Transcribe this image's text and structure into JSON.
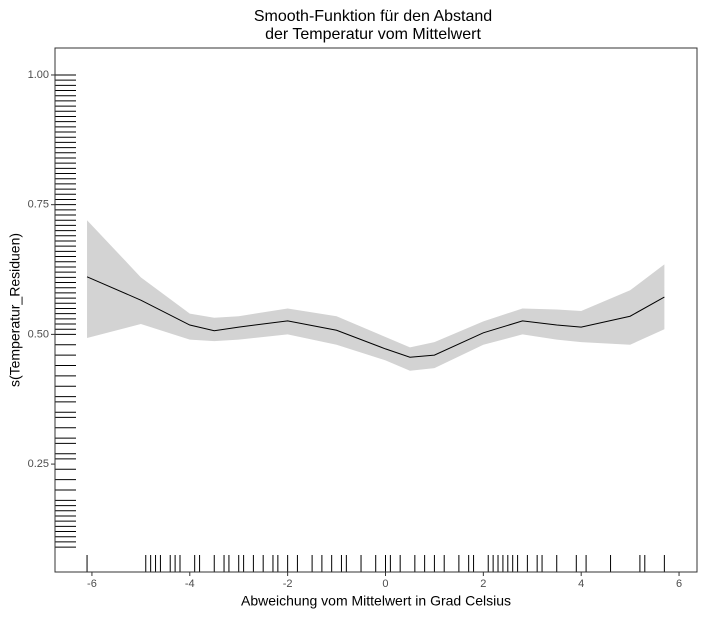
{
  "chart_data": {
    "type": "smooth",
    "title": [
      "Smooth-Funktion für den Abstand",
      "der Temperatur vom Mittelwert"
    ],
    "x_label": "Abweichung vom Mittelwert in Grad Celsius",
    "y_label": "s(Temperatur_Residuen)",
    "x": [
      -6.1,
      -5,
      -4,
      -3.5,
      -3,
      -2,
      -1,
      0,
      0.5,
      1,
      2,
      2.8,
      3.5,
      4,
      5,
      5.7
    ],
    "values": [
      0.611,
      0.566,
      0.518,
      0.507,
      0.514,
      0.526,
      0.508,
      0.472,
      0.456,
      0.46,
      0.503,
      0.526,
      0.518,
      0.514,
      0.535,
      0.572
    ],
    "lower": [
      0.493,
      0.52,
      0.49,
      0.487,
      0.49,
      0.5,
      0.48,
      0.45,
      0.43,
      0.435,
      0.48,
      0.5,
      0.49,
      0.485,
      0.48,
      0.51
    ],
    "upper": [
      0.72,
      0.61,
      0.54,
      0.532,
      0.535,
      0.55,
      0.535,
      0.495,
      0.475,
      0.485,
      0.525,
      0.55,
      0.548,
      0.545,
      0.585,
      0.635
    ],
    "color": "#000000",
    "band_color": "#d3d3d3",
    "rug_x": [
      -6.1,
      -4.9,
      -4.8,
      -4.7,
      -4.6,
      -4.4,
      -4.3,
      -4.2,
      -3.9,
      -3.8,
      -3.5,
      -3.3,
      -3.2,
      -3.0,
      -2.9,
      -2.7,
      -2.5,
      -2.3,
      -2.2,
      -2.0,
      -1.8,
      -1.5,
      -1.3,
      -1.1,
      -0.9,
      -0.8,
      -0.5,
      -0.2,
      0.0,
      0.1,
      0.3,
      0.6,
      0.8,
      1.0,
      1.2,
      1.5,
      1.7,
      1.8,
      2.1,
      2.2,
      2.3,
      2.4,
      2.5,
      2.6,
      2.7,
      2.9,
      3.1,
      3.2,
      3.5,
      3.9,
      4.1,
      4.6,
      5.2,
      5.3,
      5.7
    ],
    "rug_y": [
      0.09,
      0.1,
      0.11,
      0.12,
      0.13,
      0.14,
      0.15,
      0.16,
      0.17,
      0.18,
      0.2,
      0.22,
      0.24,
      0.26,
      0.27,
      0.29,
      0.3,
      0.32,
      0.34,
      0.35,
      0.37,
      0.38,
      0.4,
      0.42,
      0.44,
      0.46,
      0.48,
      0.5,
      0.51,
      0.52,
      0.53,
      0.54,
      0.55,
      0.56,
      0.57,
      0.58,
      0.59,
      0.6,
      0.61,
      0.62,
      0.63,
      0.64,
      0.65,
      0.66,
      0.67,
      0.68,
      0.69,
      0.7,
      0.71,
      0.72,
      0.73,
      0.74,
      0.75,
      0.76,
      0.77,
      0.78,
      0.79,
      0.8,
      0.81,
      0.82,
      0.83,
      0.84,
      0.85,
      0.86,
      0.87,
      0.88,
      0.89,
      0.9,
      0.91,
      0.92,
      0.93,
      0.94,
      0.95,
      0.96,
      0.97,
      0.98,
      0.99,
      1.0
    ],
    "xlim": [
      -6.755,
      6.367
    ],
    "ylim": [
      0.042,
      1.052
    ],
    "xticks": [
      -6,
      -4,
      -2,
      0,
      2,
      4,
      6
    ],
    "yticks": [
      0.25,
      {
        "value": 0.5,
        "label": "0.50"
      },
      0.75,
      {
        "value": 1,
        "label": "1.00"
      }
    ],
    "grid": false
  }
}
